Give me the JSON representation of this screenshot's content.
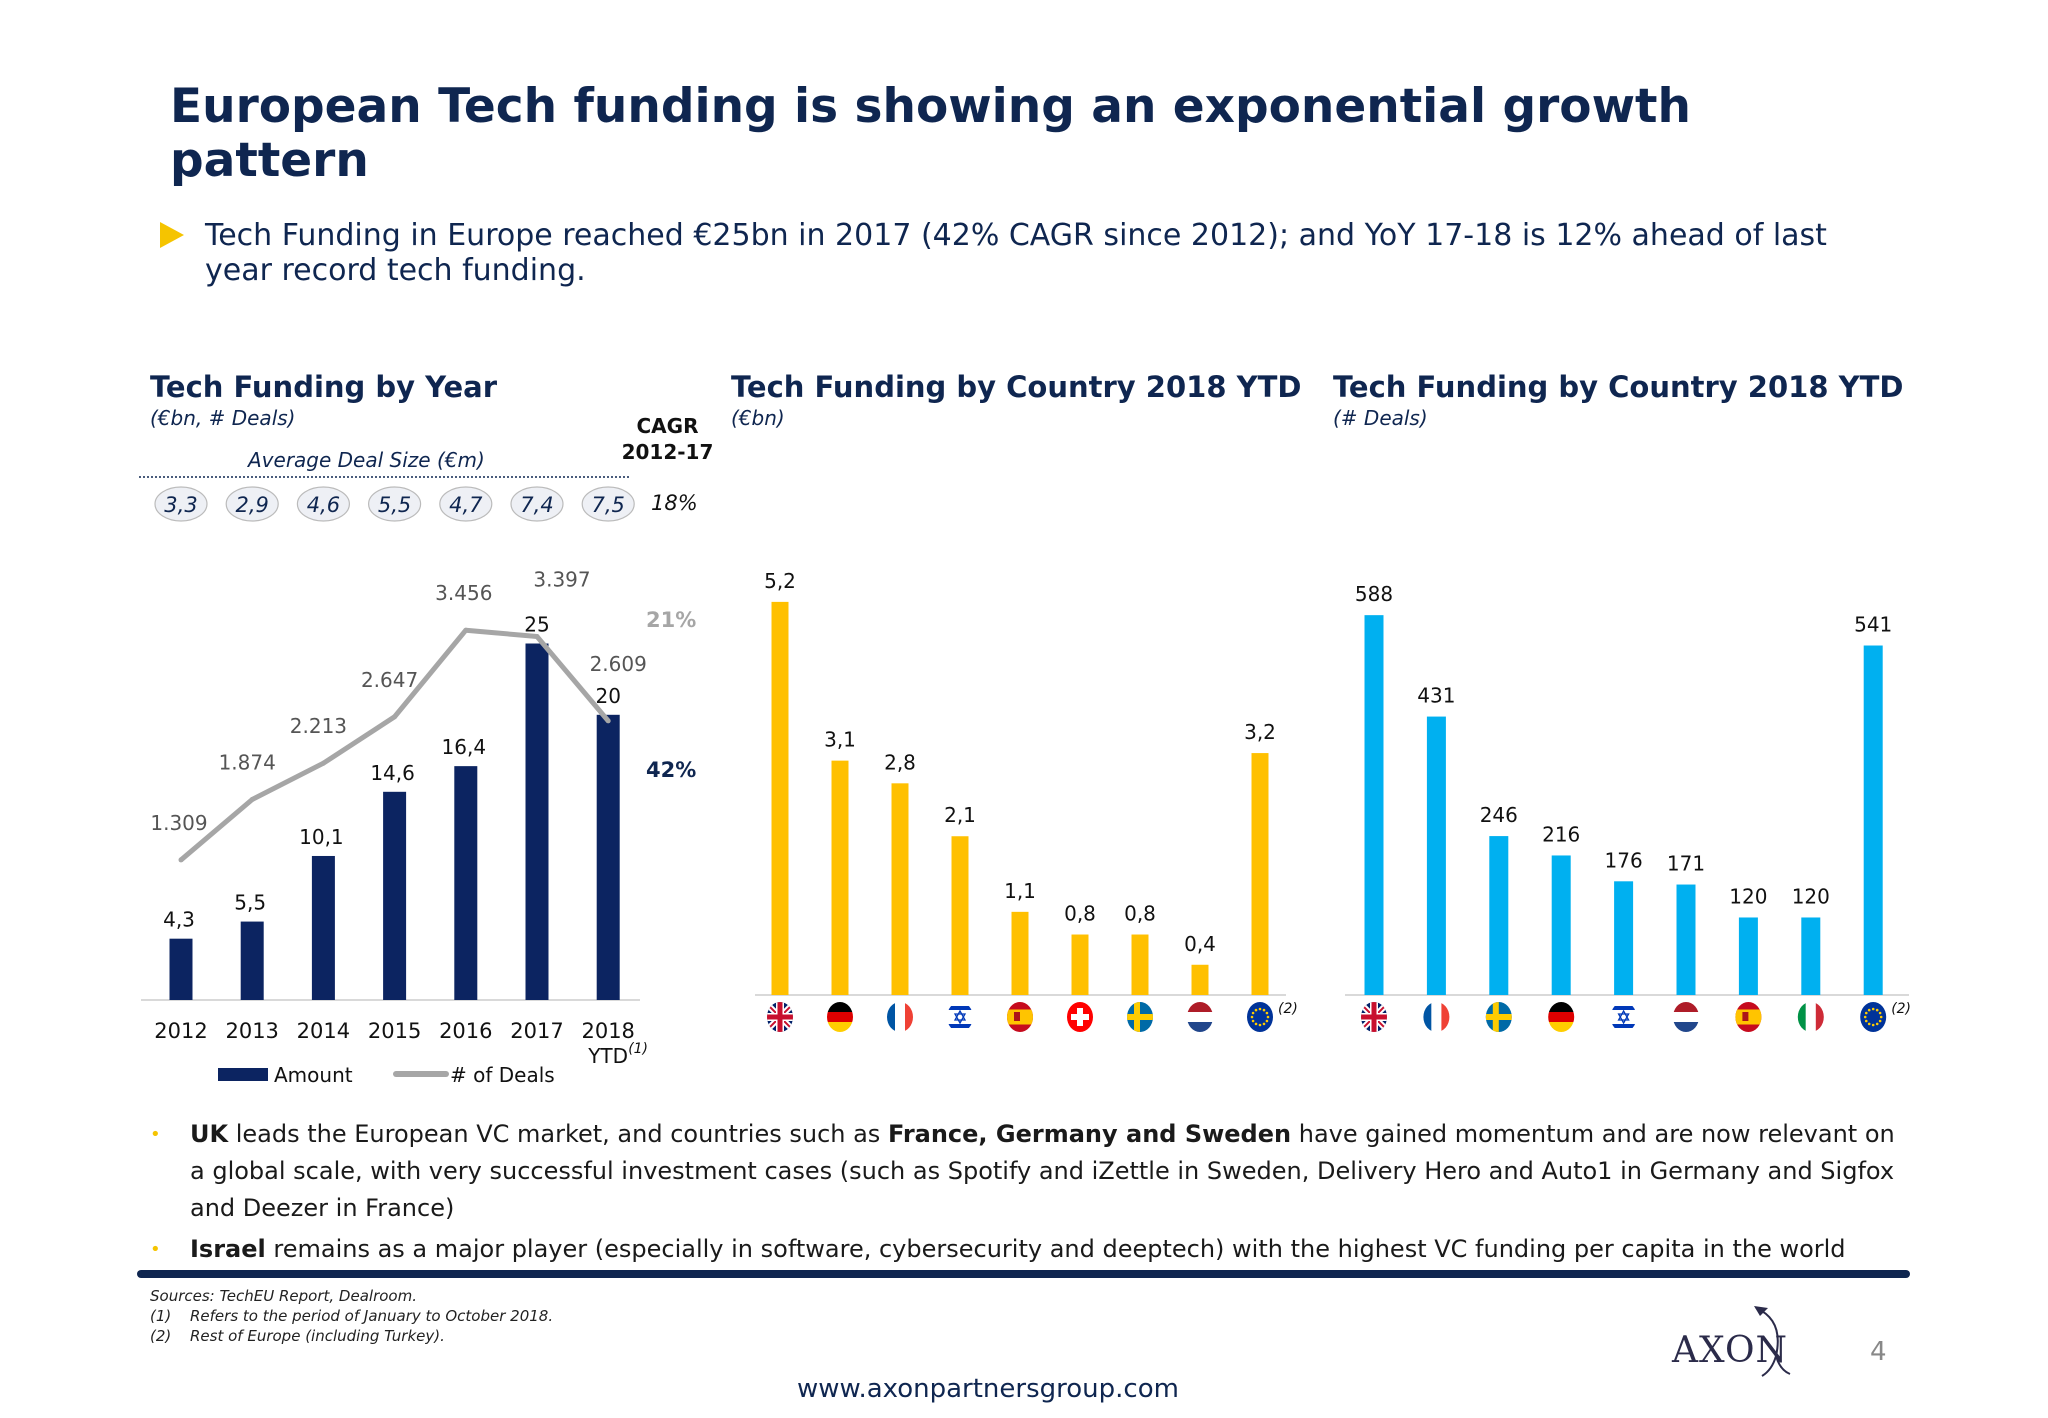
{
  "title": "European Tech funding is showing an exponential growth pattern",
  "lead": "Tech Funding in Europe reached €25bn in 2017 (42% CAGR since 2012); and YoY 17-18 is 12% ahead of last year record tech funding.",
  "colors": {
    "navy": "#0f2650",
    "bar_navy": "#0c2461",
    "line_gray": "#a6a6a6",
    "yellow": "#ffc000",
    "cyan": "#00b0f0",
    "accent": "#f5c400"
  },
  "chart_data": [
    {
      "type": "bar",
      "title": "Tech Funding by Year",
      "subtitle": "(€bn, # Deals)",
      "categories": [
        "2012",
        "2013",
        "2014",
        "2015",
        "2016",
        "2017",
        "2018"
      ],
      "last_category_suffix": "YTD",
      "last_category_note": "(1)",
      "series": [
        {
          "name": "Amount",
          "type": "bar",
          "values": [
            4.3,
            5.5,
            10.1,
            14.6,
            16.4,
            25,
            20
          ],
          "labels": [
            "4,3",
            "5,5",
            "10,1",
            "14,6",
            "16,4",
            "25",
            "20"
          ],
          "color": "#0c2461"
        },
        {
          "name": "# of Deals",
          "type": "line",
          "values": [
            1309,
            1874,
            2213,
            2647,
            3456,
            3397,
            2609
          ],
          "labels": [
            "1.309",
            "1.874",
            "2.213",
            "2.647",
            "3.456",
            "3.397",
            "2.609"
          ],
          "color": "#a6a6a6"
        }
      ],
      "avg_deal_size": {
        "label": "Average Deal Size (€m)",
        "values": [
          "3,3",
          "2,9",
          "4,6",
          "5,5",
          "4,7",
          "7,4",
          "7,5"
        ]
      },
      "cagr": {
        "header_line1": "CAGR",
        "header_line2": "2012-17",
        "avg_deal_size": "18%",
        "deals": "21%",
        "amount": "42%"
      },
      "legend": "bottom"
    },
    {
      "type": "bar",
      "title": "Tech Funding by Country 2018 YTD",
      "subtitle": "(€bn)",
      "categories": [
        "UK",
        "Germany",
        "France",
        "Israel",
        "Spain",
        "Switzerland",
        "Sweden",
        "Netherlands",
        "Rest of Europe"
      ],
      "flags": [
        "uk",
        "de",
        "fr",
        "il",
        "es",
        "ch",
        "se",
        "nl",
        "eu"
      ],
      "values": [
        5.2,
        3.1,
        2.8,
        2.1,
        1.1,
        0.8,
        0.8,
        0.4,
        3.2
      ],
      "labels": [
        "5,2",
        "3,1",
        "2,8",
        "2,1",
        "1,1",
        "0,8",
        "0,8",
        "0,4",
        "3,2"
      ],
      "last_note": "(2)",
      "color": "#ffc000"
    },
    {
      "type": "bar",
      "title": "Tech Funding by Country 2018 YTD",
      "subtitle": "(# Deals)",
      "categories": [
        "UK",
        "France",
        "Sweden",
        "Germany",
        "Israel",
        "Netherlands",
        "Spain",
        "Italy",
        "Rest of Europe"
      ],
      "flags": [
        "uk",
        "fr",
        "se",
        "de",
        "il",
        "nl",
        "es",
        "it",
        "eu"
      ],
      "values": [
        588,
        431,
        246,
        216,
        176,
        171,
        120,
        120,
        541
      ],
      "labels": [
        "588",
        "431",
        "246",
        "216",
        "176",
        "171",
        "120",
        "120",
        "541"
      ],
      "last_note": "(2)",
      "color": "#00b0f0"
    }
  ],
  "bullets": [
    {
      "parts": [
        {
          "b": true,
          "t": "UK"
        },
        {
          "b": false,
          "t": " leads the European VC market, and countries such as "
        },
        {
          "b": true,
          "t": "France, Germany and Sweden"
        },
        {
          "b": false,
          "t": " have gained momentum and are now relevant on a global scale, with very successful investment cases (such as Spotify and iZettle in Sweden, Delivery Hero and Auto1 in Germany and Sigfox and Deezer in France)"
        }
      ]
    },
    {
      "parts": [
        {
          "b": true,
          "t": "Israel"
        },
        {
          "b": false,
          "t": " remains as a major player (especially in software, cybersecurity and deeptech) with the highest VC funding per capita in the world"
        }
      ]
    }
  ],
  "sources": {
    "line": "Sources: TechEU Report, Dealroom.",
    "notes": [
      {
        "n": "(1)",
        "t": "Refers to the period of January to October 2018."
      },
      {
        "n": "(2)",
        "t": "Rest of Europe (including Turkey)."
      }
    ]
  },
  "logo": "AXON",
  "page_number": "4",
  "url": "www.axonpartnersgroup.com"
}
